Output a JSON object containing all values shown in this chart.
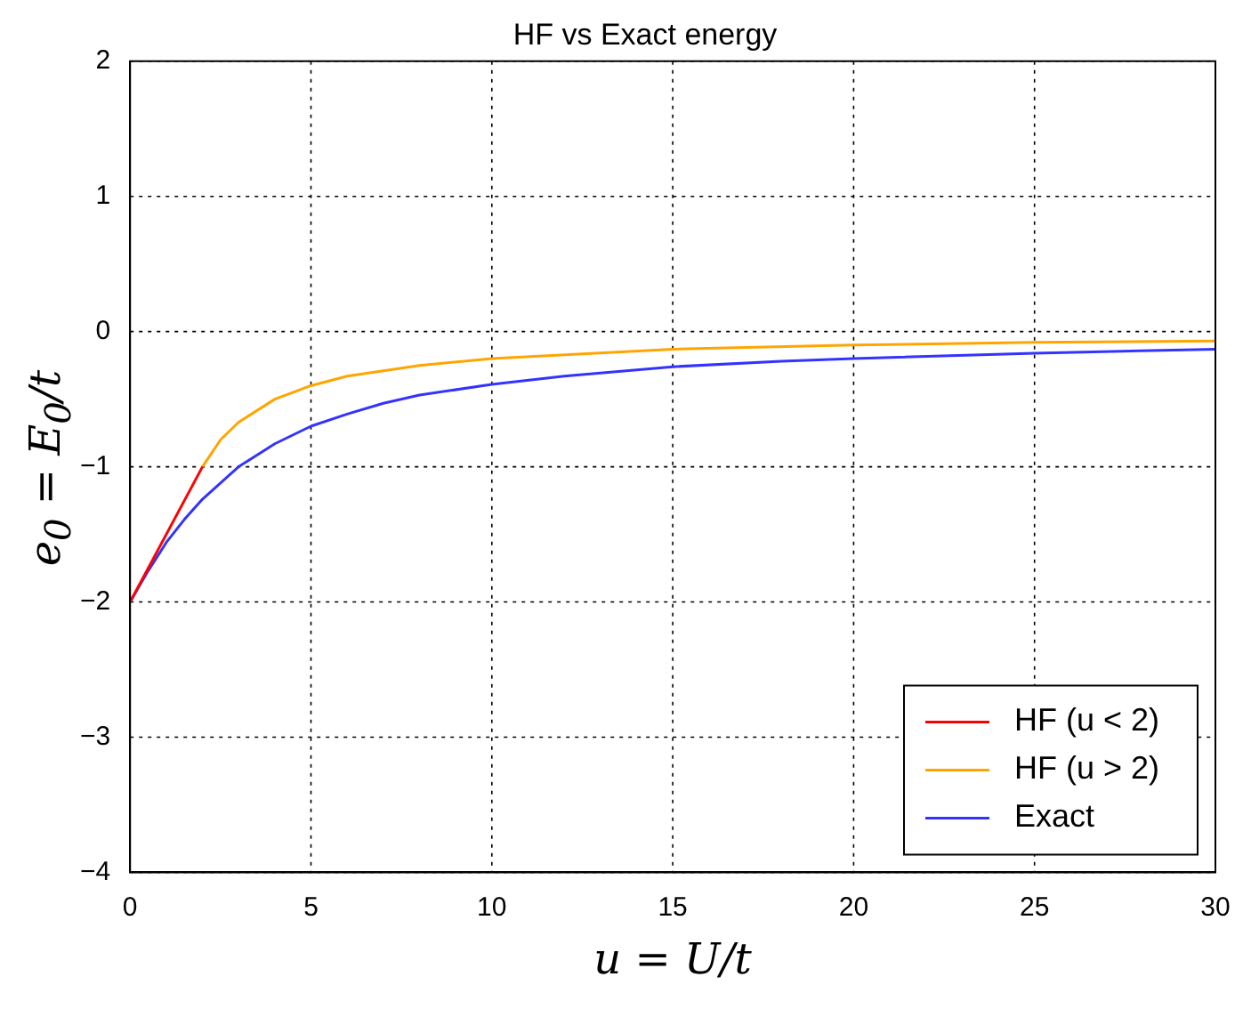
{
  "chart_data": {
    "type": "line",
    "title": "HF vs Exact energy",
    "xlabel": "u = U/t",
    "ylabel": "e$_{0}$ = E$_{0}$/t",
    "xlim": [
      0,
      30
    ],
    "xticks": [
      0,
      5,
      10,
      15,
      20,
      25,
      30
    ],
    "ylim": [
      -4,
      2
    ],
    "yticks": [
      -4,
      -3,
      -2,
      -1,
      0,
      1,
      2
    ],
    "grid": true,
    "legend": "bottom right",
    "marker": "none",
    "series": [
      {
        "name": "HF (u < 2)",
        "color": "#ff0000",
        "x": [
          0,
          2
        ],
        "values": [
          -2,
          -1
        ]
      },
      {
        "name": "HF (u > 2)",
        "color": "#ffa500",
        "x": [
          2,
          2.5,
          3,
          4,
          5,
          6,
          8,
          10,
          15,
          20,
          25,
          30
        ],
        "values": [
          -1,
          -0.8,
          -0.67,
          -0.5,
          -0.4,
          -0.33,
          -0.25,
          -0.2,
          -0.13,
          -0.1,
          -0.08,
          -0.07
        ]
      },
      {
        "name": "Exact",
        "color": "#3333ff",
        "x": [
          0,
          0.5,
          1,
          1.5,
          2,
          3,
          4,
          5,
          6,
          7,
          8,
          10,
          12,
          15,
          18,
          20,
          25,
          30
        ],
        "values": [
          -2,
          -1.77,
          -1.56,
          -1.39,
          -1.24,
          -1,
          -0.83,
          -0.7,
          -0.61,
          -0.53,
          -0.47,
          -0.39,
          -0.33,
          -0.26,
          -0.22,
          -0.2,
          -0.16,
          -0.13
        ]
      }
    ]
  }
}
